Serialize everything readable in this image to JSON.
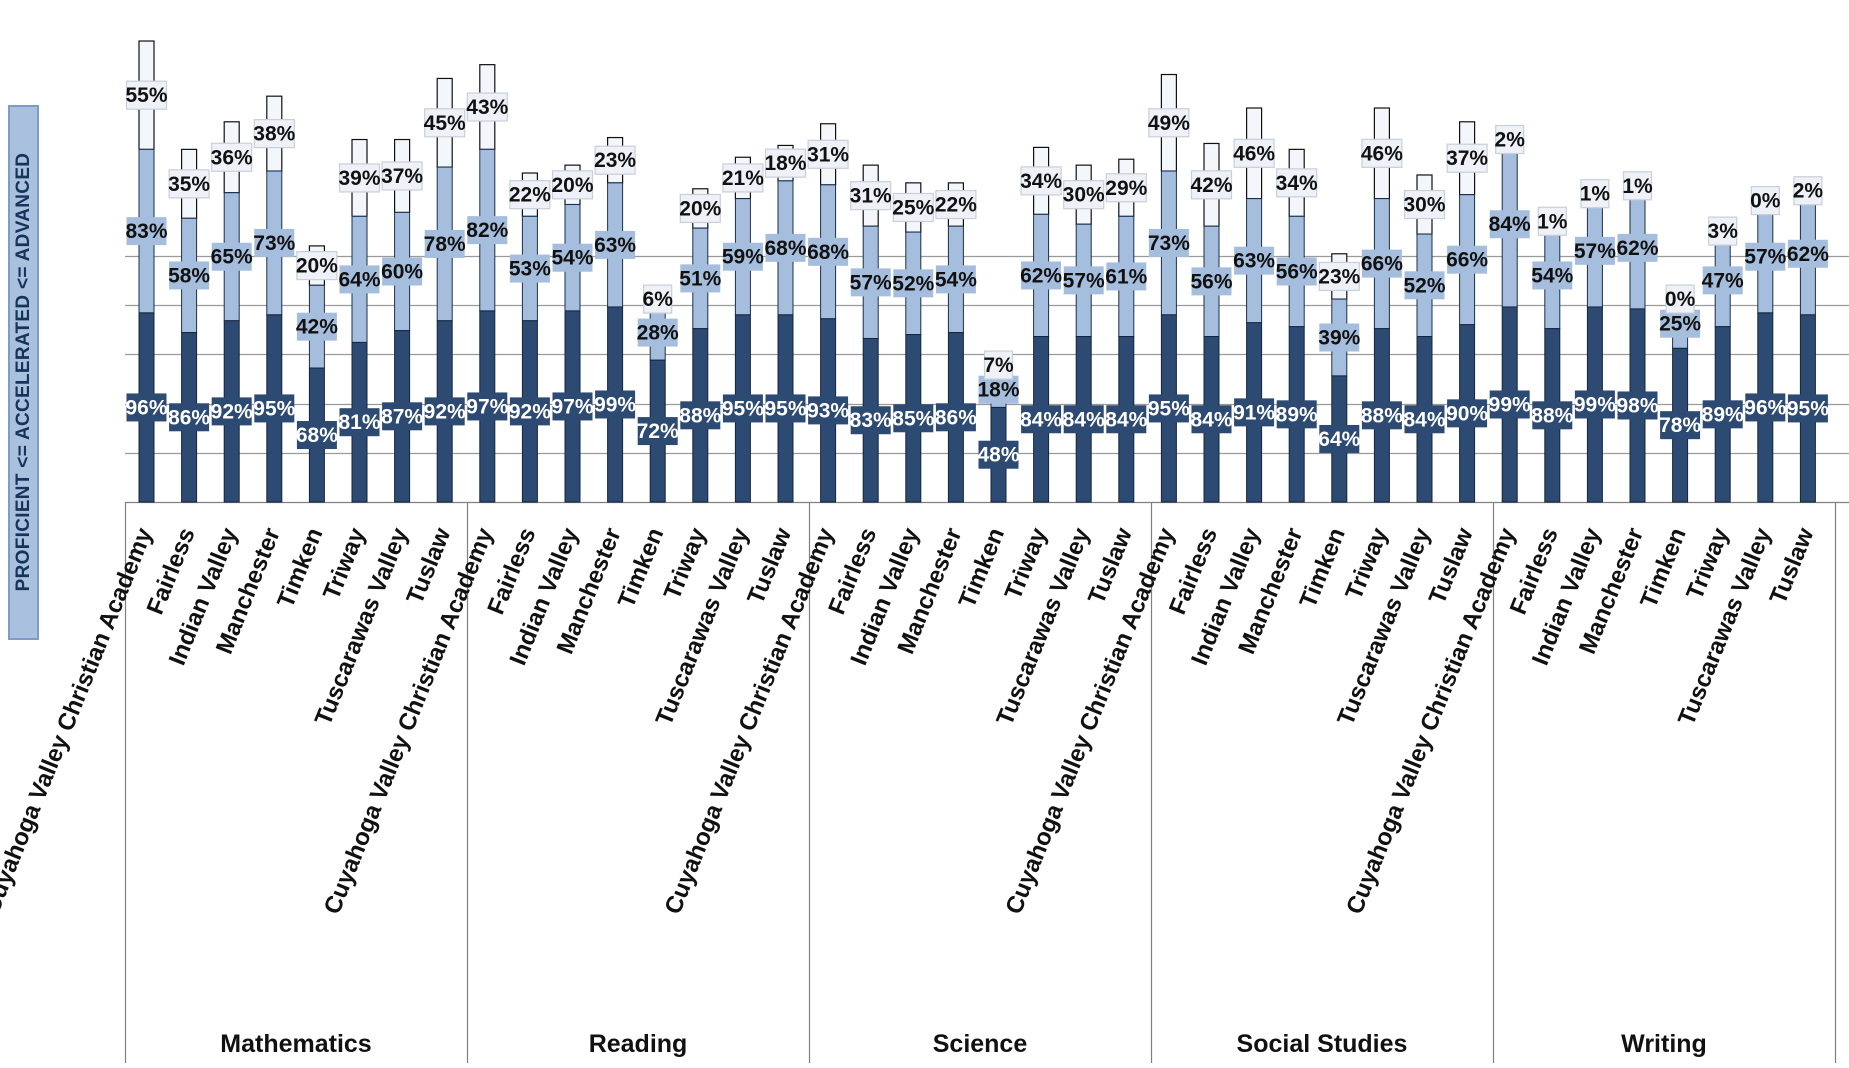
{
  "chart_data": {
    "type": "bar",
    "ylabel": "PROFICIENT <= ACCELERATED <= ADVANCED",
    "ylim": [
      0,
      125
    ],
    "grid": true,
    "colors": {
      "proficient": "#2c4a72",
      "accelerated": "#a6bedd",
      "advanced": "#f3f6fa",
      "label_proficient_bg": "#2c4a72",
      "label_accelerated_bg": "#a6bedd",
      "label_advanced_bg": "#eef2f8"
    },
    "series": [
      {
        "name": "",
        "key": "proficient"
      },
      {
        "name": "",
        "key": "accelerated"
      },
      {
        "name": "",
        "key": "advanced"
      }
    ],
    "groups": [
      {
        "name": "Mathematics",
        "categories": [
          "Cuyahoga Valley Christian Academy",
          "Fairless",
          "Indian Valley",
          "Manchester",
          "Timken",
          "Triway",
          "Tuscarawas Valley",
          "Tuslaw"
        ],
        "proficient": [
          96,
          86,
          92,
          95,
          68,
          81,
          87,
          92
        ],
        "accelerated": [
          83,
          58,
          65,
          73,
          42,
          64,
          60,
          78
        ],
        "advanced": [
          55,
          35,
          36,
          38,
          20,
          39,
          37,
          45
        ]
      },
      {
        "name": "Reading",
        "categories": [
          "Cuyahoga Valley Christian Academy",
          "Fairless",
          "Indian Valley",
          "Manchester",
          "Timken",
          "Triway",
          "Tuscarawas Valley",
          "Tuslaw"
        ],
        "proficient": [
          97,
          92,
          97,
          99,
          72,
          88,
          95,
          95
        ],
        "accelerated": [
          82,
          53,
          54,
          63,
          28,
          51,
          59,
          68
        ],
        "advanced": [
          43,
          22,
          20,
          23,
          6,
          20,
          21,
          18
        ]
      },
      {
        "name": "Science",
        "categories": [
          "Cuyahoga Valley Christian Academy",
          "Fairless",
          "Indian Valley",
          "Manchester",
          "Timken",
          "Triway",
          "Tuscarawas Valley",
          "Tuslaw"
        ],
        "proficient": [
          93,
          83,
          85,
          86,
          48,
          84,
          84,
          84
        ],
        "accelerated": [
          68,
          57,
          52,
          54,
          18,
          62,
          57,
          61
        ],
        "advanced": [
          31,
          31,
          25,
          22,
          7,
          34,
          30,
          29
        ]
      },
      {
        "name": "Social Studies",
        "categories": [
          "Cuyahoga Valley Christian Academy",
          "Fairless",
          "Indian Valley",
          "Manchester",
          "Timken",
          "Triway",
          "Tuscarawas Valley",
          "Tuslaw"
        ],
        "proficient": [
          95,
          84,
          91,
          89,
          64,
          88,
          84,
          90
        ],
        "accelerated": [
          73,
          56,
          63,
          56,
          39,
          66,
          52,
          66
        ],
        "advanced": [
          49,
          42,
          46,
          34,
          23,
          46,
          30,
          37
        ]
      },
      {
        "name": "Writing",
        "categories": [
          "Cuyahoga Valley Christian Academy",
          "Fairless",
          "Indian Valley",
          "Manchester",
          "Timken",
          "Triway",
          "Tuscarawas Valley",
          "Tuslaw"
        ],
        "proficient": [
          99,
          88,
          99,
          98,
          78,
          89,
          96,
          95
        ],
        "accelerated": [
          84,
          54,
          57,
          62,
          25,
          47,
          57,
          62
        ],
        "advanced": [
          2,
          1,
          1,
          1,
          0,
          3,
          0,
          2
        ]
      }
    ]
  }
}
